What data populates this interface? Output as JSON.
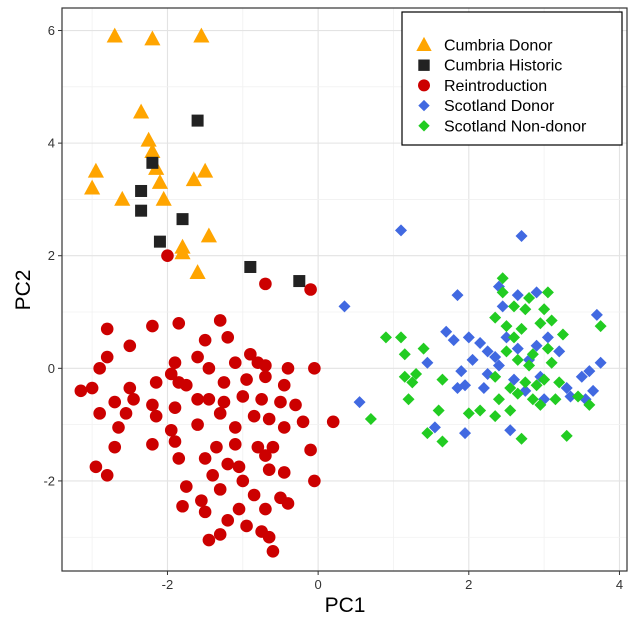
{
  "chart_data": {
    "type": "scatter",
    "xlabel": "PC1",
    "ylabel": "PC2",
    "xlim": [
      -3.4,
      4.1
    ],
    "ylim": [
      -3.6,
      6.4
    ],
    "xticks": [
      -2,
      0,
      2,
      4
    ],
    "yticks": [
      -2,
      0,
      2,
      4,
      6
    ],
    "grid": true,
    "legend_position": "top-right",
    "series": [
      {
        "name": "Cumbria Donor",
        "marker": "triangle",
        "color": "#FFA500",
        "points": [
          [
            -2.7,
            5.9
          ],
          [
            -2.2,
            5.85
          ],
          [
            -1.55,
            5.9
          ],
          [
            -2.35,
            4.55
          ],
          [
            -2.25,
            4.05
          ],
          [
            -2.2,
            3.85
          ],
          [
            -2.15,
            3.55
          ],
          [
            -2.1,
            3.3
          ],
          [
            -2.95,
            3.5
          ],
          [
            -3.0,
            3.2
          ],
          [
            -2.05,
            3.0
          ],
          [
            -2.6,
            3.0
          ],
          [
            -1.65,
            3.35
          ],
          [
            -1.5,
            3.5
          ],
          [
            -1.45,
            2.35
          ],
          [
            -1.8,
            2.15
          ],
          [
            -1.8,
            2.05
          ],
          [
            -1.6,
            1.7
          ]
        ]
      },
      {
        "name": "Cumbria Historic",
        "marker": "square",
        "color": "#222222",
        "points": [
          [
            -1.6,
            4.4
          ],
          [
            -2.2,
            3.65
          ],
          [
            -2.35,
            3.15
          ],
          [
            -2.35,
            2.8
          ],
          [
            -1.8,
            2.65
          ],
          [
            -2.1,
            2.25
          ],
          [
            -0.9,
            1.8
          ],
          [
            -0.25,
            1.55
          ]
        ]
      },
      {
        "name": "Reintroduction",
        "marker": "circle",
        "color": "#CC0000",
        "points": [
          [
            -2.0,
            2.0
          ],
          [
            -0.7,
            1.5
          ],
          [
            -0.1,
            1.4
          ],
          [
            -2.8,
            0.7
          ],
          [
            -2.2,
            0.75
          ],
          [
            -1.85,
            0.8
          ],
          [
            -1.3,
            0.85
          ],
          [
            -1.5,
            0.5
          ],
          [
            -1.2,
            0.55
          ],
          [
            -1.6,
            0.2
          ],
          [
            -2.5,
            0.4
          ],
          [
            -1.9,
            0.1
          ],
          [
            -0.9,
            0.25
          ],
          [
            -1.1,
            0.1
          ],
          [
            -0.7,
            0.05
          ],
          [
            -0.8,
            0.1
          ],
          [
            -0.4,
            0.0
          ],
          [
            -0.05,
            0.0
          ],
          [
            -2.8,
            0.2
          ],
          [
            -2.9,
            0.0
          ],
          [
            -1.45,
            0.0
          ],
          [
            -1.95,
            -0.1
          ],
          [
            -2.15,
            -0.25
          ],
          [
            -1.75,
            -0.3
          ],
          [
            -1.85,
            -0.25
          ],
          [
            -1.25,
            -0.25
          ],
          [
            -0.95,
            -0.2
          ],
          [
            -0.7,
            -0.15
          ],
          [
            -0.45,
            -0.3
          ],
          [
            -3.15,
            -0.4
          ],
          [
            -3.0,
            -0.35
          ],
          [
            -2.5,
            -0.35
          ],
          [
            -2.45,
            -0.55
          ],
          [
            -2.7,
            -0.6
          ],
          [
            -2.2,
            -0.65
          ],
          [
            -2.15,
            -0.85
          ],
          [
            -1.6,
            -0.55
          ],
          [
            -1.45,
            -0.55
          ],
          [
            -1.25,
            -0.6
          ],
          [
            -1.0,
            -0.5
          ],
          [
            -0.75,
            -0.55
          ],
          [
            -0.5,
            -0.6
          ],
          [
            -0.3,
            -0.65
          ],
          [
            -1.9,
            -0.7
          ],
          [
            -2.9,
            -0.8
          ],
          [
            -2.55,
            -0.8
          ],
          [
            -1.3,
            -0.8
          ],
          [
            -0.85,
            -0.85
          ],
          [
            -0.65,
            -0.9
          ],
          [
            -0.2,
            -0.95
          ],
          [
            0.2,
            -0.95
          ],
          [
            -2.65,
            -1.05
          ],
          [
            -1.95,
            -1.1
          ],
          [
            -1.6,
            -1.0
          ],
          [
            -1.1,
            -1.05
          ],
          [
            -0.45,
            -1.05
          ],
          [
            -2.7,
            -1.4
          ],
          [
            -2.2,
            -1.35
          ],
          [
            -1.9,
            -1.3
          ],
          [
            -1.35,
            -1.4
          ],
          [
            -1.1,
            -1.35
          ],
          [
            -0.8,
            -1.4
          ],
          [
            -0.6,
            -1.4
          ],
          [
            -1.85,
            -1.6
          ],
          [
            -1.5,
            -1.6
          ],
          [
            -1.2,
            -1.7
          ],
          [
            -1.05,
            -1.75
          ],
          [
            -0.7,
            -1.55
          ],
          [
            -0.1,
            -1.45
          ],
          [
            -2.95,
            -1.75
          ],
          [
            -2.8,
            -1.9
          ],
          [
            -1.4,
            -1.9
          ],
          [
            -1.0,
            -2.0
          ],
          [
            -0.65,
            -1.8
          ],
          [
            -0.45,
            -1.85
          ],
          [
            -0.05,
            -2.0
          ],
          [
            -1.75,
            -2.1
          ],
          [
            -1.3,
            -2.15
          ],
          [
            -0.85,
            -2.25
          ],
          [
            -0.5,
            -2.3
          ],
          [
            -1.55,
            -2.35
          ],
          [
            -1.05,
            -2.5
          ],
          [
            -0.7,
            -2.5
          ],
          [
            -0.4,
            -2.4
          ],
          [
            -1.8,
            -2.45
          ],
          [
            -1.5,
            -2.55
          ],
          [
            -1.2,
            -2.7
          ],
          [
            -0.95,
            -2.8
          ],
          [
            -0.75,
            -2.9
          ],
          [
            -1.3,
            -2.95
          ],
          [
            -1.45,
            -3.05
          ],
          [
            -0.65,
            -3.0
          ],
          [
            -0.6,
            -3.25
          ]
        ]
      },
      {
        "name": "Scotland Donor",
        "marker": "diamond",
        "color": "#4169E1",
        "points": [
          [
            1.1,
            2.45
          ],
          [
            2.7,
            2.35
          ],
          [
            0.35,
            1.1
          ],
          [
            1.85,
            1.3
          ],
          [
            2.4,
            1.45
          ],
          [
            2.65,
            1.3
          ],
          [
            2.9,
            1.35
          ],
          [
            2.45,
            1.1
          ],
          [
            1.7,
            0.65
          ],
          [
            1.8,
            0.5
          ],
          [
            2.0,
            0.55
          ],
          [
            2.15,
            0.45
          ],
          [
            2.25,
            0.3
          ],
          [
            2.35,
            0.2
          ],
          [
            2.5,
            0.55
          ],
          [
            2.65,
            0.35
          ],
          [
            2.8,
            0.15
          ],
          [
            2.9,
            0.4
          ],
          [
            3.05,
            0.55
          ],
          [
            3.7,
            0.95
          ],
          [
            3.2,
            0.3
          ],
          [
            1.45,
            0.1
          ],
          [
            1.9,
            -0.05
          ],
          [
            2.05,
            0.15
          ],
          [
            2.25,
            -0.1
          ],
          [
            2.4,
            0.05
          ],
          [
            2.6,
            -0.2
          ],
          [
            2.95,
            -0.15
          ],
          [
            3.3,
            -0.35
          ],
          [
            3.5,
            -0.15
          ],
          [
            3.6,
            -0.05
          ],
          [
            3.75,
            0.1
          ],
          [
            0.55,
            -0.6
          ],
          [
            1.85,
            -0.35
          ],
          [
            1.95,
            -0.3
          ],
          [
            2.2,
            -0.35
          ],
          [
            2.75,
            -0.4
          ],
          [
            3.0,
            -0.55
          ],
          [
            3.35,
            -0.5
          ],
          [
            3.55,
            -0.55
          ],
          [
            3.65,
            -0.4
          ],
          [
            1.55,
            -1.05
          ],
          [
            1.95,
            -1.15
          ],
          [
            2.55,
            -1.1
          ]
        ]
      },
      {
        "name": "Scotland Non-donor",
        "marker": "diamond",
        "color": "#22CC22",
        "points": [
          [
            2.45,
            1.6
          ],
          [
            2.45,
            1.35
          ],
          [
            2.6,
            1.1
          ],
          [
            2.75,
            1.05
          ],
          [
            2.8,
            1.25
          ],
          [
            3.05,
            1.35
          ],
          [
            3.0,
            1.05
          ],
          [
            2.35,
            0.9
          ],
          [
            2.5,
            0.75
          ],
          [
            2.7,
            0.7
          ],
          [
            2.95,
            0.8
          ],
          [
            3.1,
            0.85
          ],
          [
            3.75,
            0.75
          ],
          [
            0.9,
            0.55
          ],
          [
            1.1,
            0.55
          ],
          [
            2.6,
            0.55
          ],
          [
            3.25,
            0.6
          ],
          [
            1.15,
            0.25
          ],
          [
            1.4,
            0.35
          ],
          [
            2.5,
            0.3
          ],
          [
            2.85,
            0.25
          ],
          [
            3.05,
            0.35
          ],
          [
            2.65,
            0.15
          ],
          [
            3.1,
            0.1
          ],
          [
            2.8,
            0.05
          ],
          [
            1.3,
            -0.1
          ],
          [
            2.35,
            -0.15
          ],
          [
            2.75,
            -0.25
          ],
          [
            3.0,
            -0.2
          ],
          [
            3.2,
            -0.25
          ],
          [
            1.15,
            -0.15
          ],
          [
            1.25,
            -0.25
          ],
          [
            1.65,
            -0.2
          ],
          [
            2.55,
            -0.35
          ],
          [
            2.9,
            -0.3
          ],
          [
            1.2,
            -0.55
          ],
          [
            2.4,
            -0.55
          ],
          [
            2.65,
            -0.45
          ],
          [
            2.85,
            -0.55
          ],
          [
            3.15,
            -0.55
          ],
          [
            3.45,
            -0.5
          ],
          [
            1.6,
            -0.75
          ],
          [
            2.15,
            -0.75
          ],
          [
            2.55,
            -0.75
          ],
          [
            2.95,
            -0.65
          ],
          [
            3.6,
            -0.65
          ],
          [
            0.7,
            -0.9
          ],
          [
            2.0,
            -0.8
          ],
          [
            2.35,
            -0.85
          ],
          [
            1.45,
            -1.15
          ],
          [
            1.65,
            -1.3
          ],
          [
            2.7,
            -1.25
          ],
          [
            3.3,
            -1.2
          ]
        ]
      }
    ]
  }
}
